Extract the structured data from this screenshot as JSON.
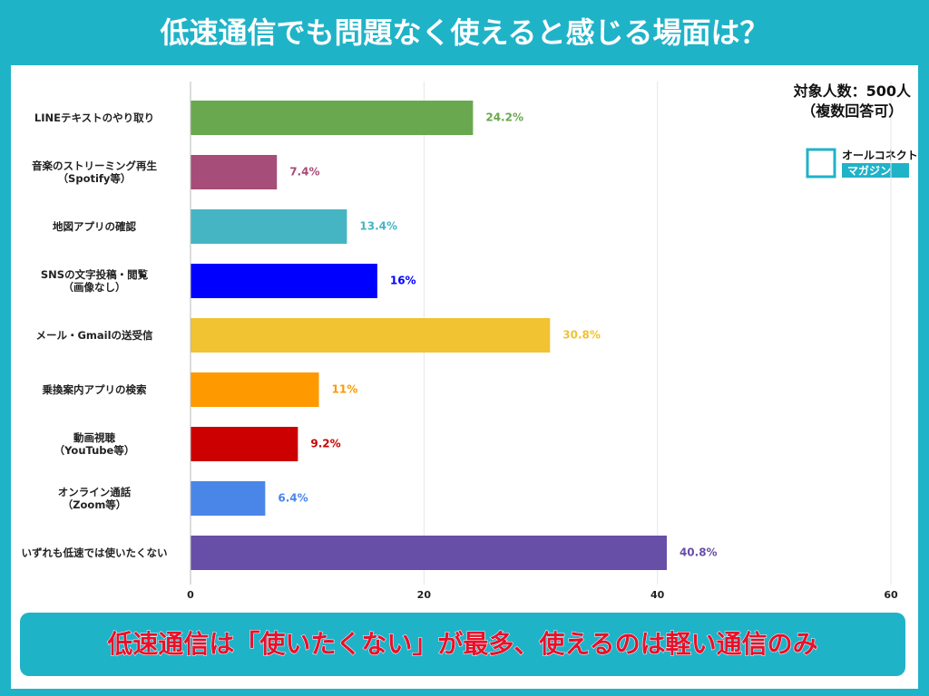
{
  "chart_data": {
    "type": "bar",
    "orientation": "horizontal",
    "title": "低速通信でも問題なく使えると感じる場面は？",
    "note": [
      "対象人数：500人",
      "（複数回答可）"
    ],
    "logo": [
      "オールコネクト",
      "マガジン"
    ],
    "categories": [
      "LINEテキストのやり取り",
      "音楽のストリーミング再生\n（Spotify等）",
      "地図アプリの確認",
      "SNSの文字投稿・閲覧\n（画像なし）",
      "メール・Gmailの送受信",
      "乗換案内アプリの検索",
      "動画視聴\n（YouTube等）",
      "オンライン通話\n（Zoom等）",
      "いずれも低速では使いたくない"
    ],
    "values": [
      24.2,
      7.4,
      13.4,
      16,
      30.8,
      11,
      9.2,
      6.4,
      40.8
    ],
    "value_labels": [
      "24.2%",
      "7.4%",
      "13.4%",
      "16%",
      "30.8%",
      "11%",
      "9.2%",
      "6.4%",
      "40.8%"
    ],
    "colors": [
      "#6aa84f",
      "#a64d79",
      "#45b5c4",
      "#0000ff",
      "#f1c232",
      "#ff9900",
      "#cc0000",
      "#4a86e8",
      "#674ea7"
    ],
    "xlim": [
      0,
      60
    ],
    "xticks": [
      0,
      20,
      40,
      60
    ],
    "grid": true,
    "footer": "低速通信は「使いたくない」が最多、使えるのは軽い通信のみ"
  }
}
